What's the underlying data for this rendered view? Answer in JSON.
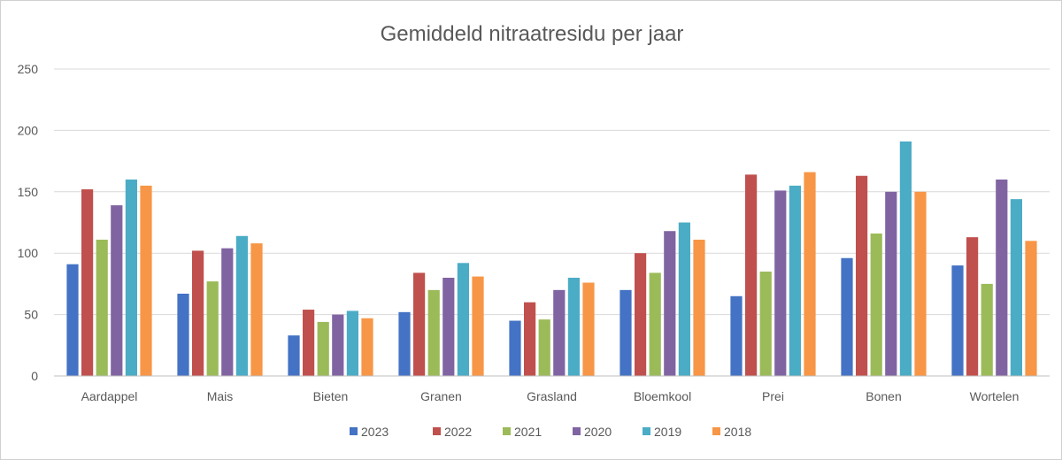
{
  "chart_data": {
    "type": "bar",
    "title": "Gemiddeld nitraatresidu per jaar",
    "xlabel": "",
    "ylabel": "",
    "ylim": [
      0,
      250
    ],
    "yticks": [
      0,
      50,
      100,
      150,
      200,
      250
    ],
    "grid": true,
    "legend_position": "bottom",
    "categories": [
      "Aardappel",
      "Mais",
      "Bieten",
      "Granen",
      "Grasland",
      "Bloemkool",
      "Prei",
      "Bonen",
      "Wortelen"
    ],
    "series": [
      {
        "name": "2023",
        "color": "#4472c4",
        "values": [
          91,
          67,
          33,
          52,
          45,
          70,
          65,
          96,
          90
        ]
      },
      {
        "name": "2022",
        "color": "#c0504d",
        "values": [
          152,
          102,
          54,
          84,
          60,
          100,
          164,
          163,
          113
        ]
      },
      {
        "name": "2021",
        "color": "#9bbb59",
        "values": [
          111,
          77,
          44,
          70,
          46,
          84,
          85,
          116,
          75
        ]
      },
      {
        "name": "2020",
        "color": "#8064a2",
        "values": [
          139,
          104,
          50,
          80,
          70,
          118,
          151,
          150,
          160
        ]
      },
      {
        "name": "2019",
        "color": "#4bacc6",
        "values": [
          160,
          114,
          53,
          92,
          80,
          125,
          155,
          191,
          144
        ]
      },
      {
        "name": "2018",
        "color": "#f79646",
        "values": [
          155,
          108,
          47,
          81,
          76,
          111,
          166,
          150,
          110
        ]
      }
    ]
  }
}
